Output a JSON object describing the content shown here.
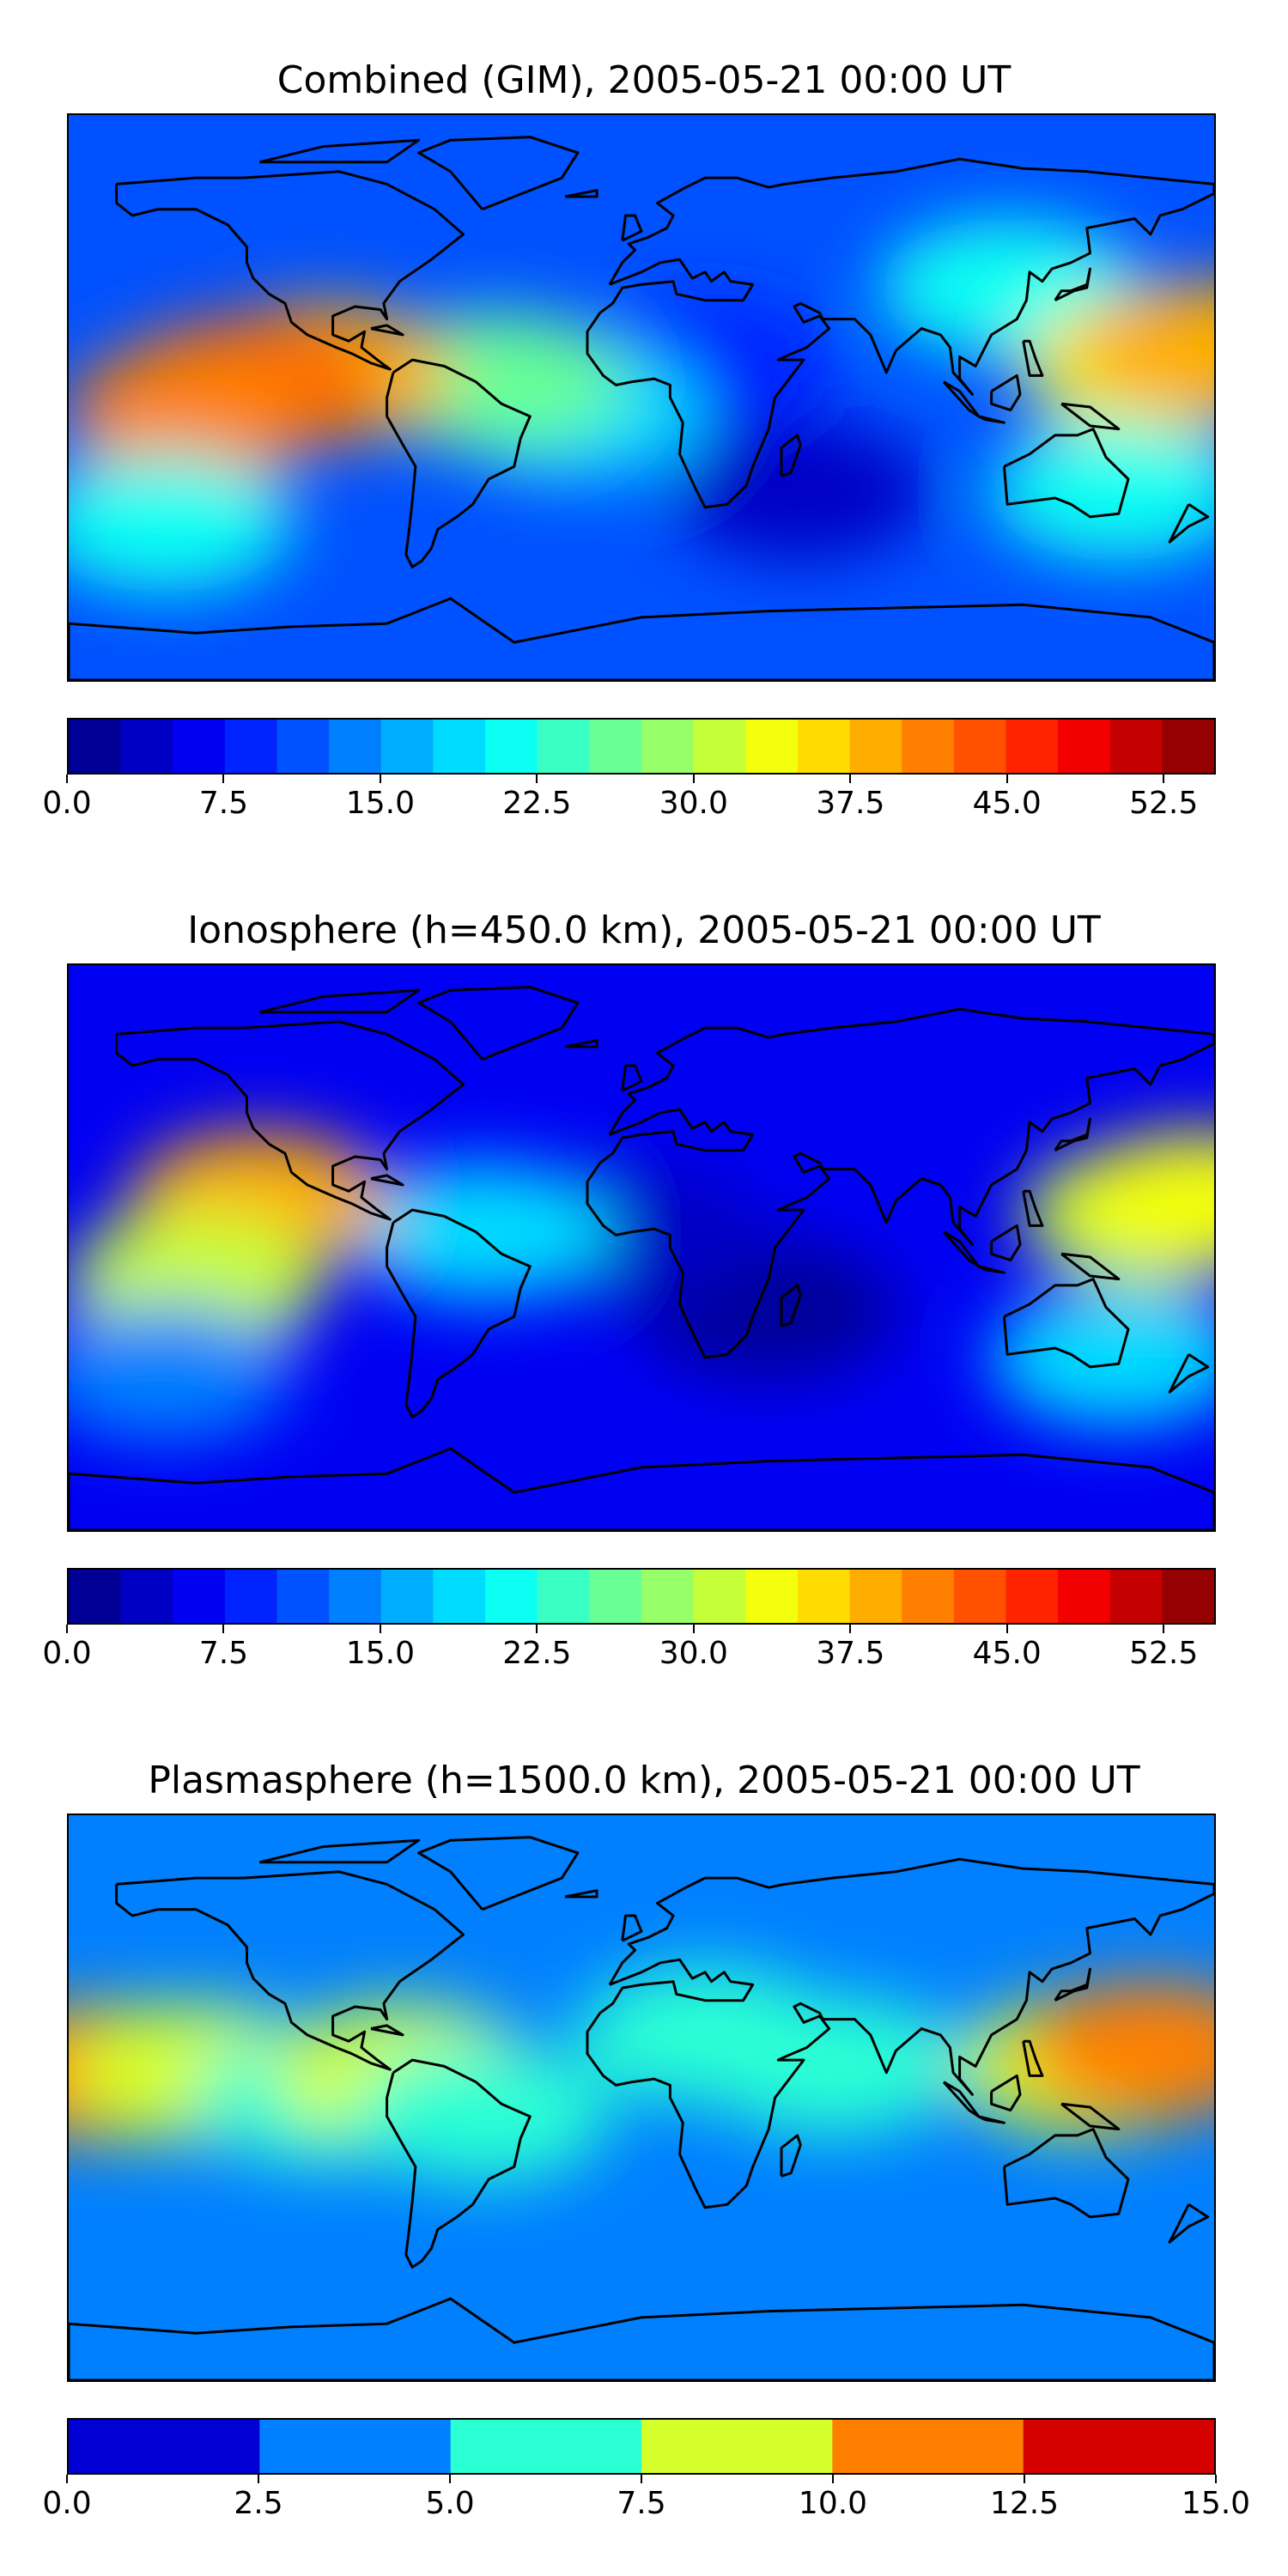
{
  "chart_data": [
    {
      "type": "heatmap",
      "title": "Combined (GIM), 2005-05-21 00:00 UT",
      "colorbar": {
        "min": 0.0,
        "max": 55.0,
        "step": 2.5,
        "tick_labels": [
          "0.0",
          "7.5",
          "15.0",
          "22.5",
          "30.0",
          "37.5",
          "45.0",
          "52.5"
        ],
        "tick_values": [
          0.0,
          7.5,
          15.0,
          22.5,
          30.0,
          37.5,
          45.0,
          52.5
        ]
      },
      "background_level": 10,
      "features": [
        {
          "lon": 50,
          "lat": -30,
          "value": 4
        },
        {
          "lon": 20,
          "lat": 10,
          "value": 8
        },
        {
          "lon": -20,
          "lat": -5,
          "value": 18
        },
        {
          "lon": -45,
          "lat": 5,
          "value": 26
        },
        {
          "lon": -100,
          "lat": 8,
          "value": 38
        },
        {
          "lon": -125,
          "lat": 3,
          "value": 44
        },
        {
          "lon": -140,
          "lat": -5,
          "value": 40
        },
        {
          "lon": 115,
          "lat": 35,
          "value": 22
        },
        {
          "lon": 160,
          "lat": 10,
          "value": 34
        },
        {
          "lon": 175,
          "lat": 15,
          "value": 38
        },
        {
          "lon": 150,
          "lat": -30,
          "value": 22
        },
        {
          "lon": -150,
          "lat": -40,
          "value": 20
        }
      ]
    },
    {
      "type": "heatmap",
      "title": "Ionosphere  (h=450.0 km), 2005-05-21 00:00 UT",
      "colorbar": {
        "min": 0.0,
        "max": 55.0,
        "step": 2.5,
        "tick_labels": [
          "0.0",
          "7.5",
          "15.0",
          "22.5",
          "30.0",
          "37.5",
          "45.0",
          "52.5"
        ],
        "tick_values": [
          0.0,
          7.5,
          15.0,
          22.5,
          30.0,
          37.5,
          45.0,
          52.5
        ]
      },
      "background_level": 6,
      "features": [
        {
          "lon": 40,
          "lat": -20,
          "value": 2
        },
        {
          "lon": 0,
          "lat": 5,
          "value": 4
        },
        {
          "lon": -50,
          "lat": 5,
          "value": 18
        },
        {
          "lon": -120,
          "lat": 15,
          "value": 38
        },
        {
          "lon": -140,
          "lat": -10,
          "value": 30
        },
        {
          "lon": 160,
          "lat": 10,
          "value": 32
        },
        {
          "lon": 175,
          "lat": 15,
          "value": 34
        },
        {
          "lon": 150,
          "lat": -35,
          "value": 18
        },
        {
          "lon": -150,
          "lat": -40,
          "value": 14
        }
      ]
    },
    {
      "type": "heatmap",
      "title": "Plasmasphere (h=1500.0 km), 2005-05-21 00:00 UT",
      "colorbar": {
        "min": 0.0,
        "max": 15.0,
        "step": 2.5,
        "tick_labels": [
          "0.0",
          "2.5",
          "5.0",
          "7.5",
          "10.0",
          "12.5",
          "15.0"
        ],
        "tick_values": [
          0.0,
          2.5,
          5.0,
          7.5,
          10.0,
          12.5,
          15.0
        ]
      },
      "background_level": 3,
      "features": [
        {
          "lon": -170,
          "lat": 8,
          "value": 11
        },
        {
          "lon": -140,
          "lat": 8,
          "value": 8
        },
        {
          "lon": -100,
          "lat": 0,
          "value": 6
        },
        {
          "lon": -75,
          "lat": 8,
          "value": 8
        },
        {
          "lon": -50,
          "lat": -5,
          "value": 6
        },
        {
          "lon": 20,
          "lat": 20,
          "value": 6
        },
        {
          "lon": 60,
          "lat": 10,
          "value": 6
        },
        {
          "lon": 140,
          "lat": 10,
          "value": 9
        },
        {
          "lon": 160,
          "lat": 15,
          "value": 11
        }
      ]
    }
  ]
}
